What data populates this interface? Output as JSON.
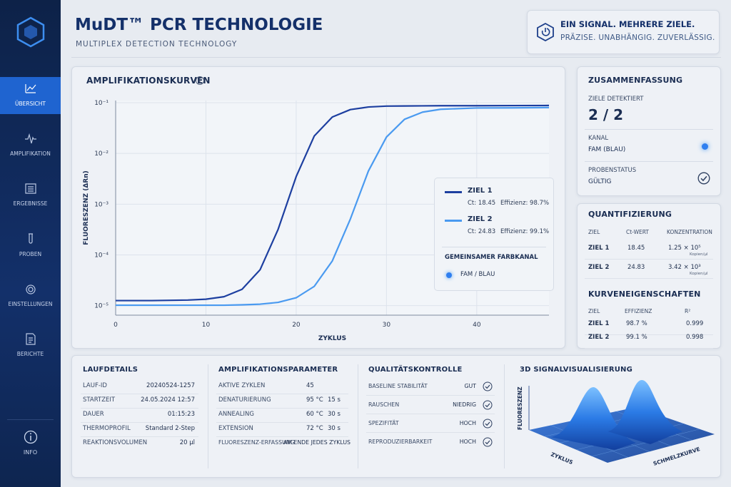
{
  "sidebar": {
    "items": [
      "ÜBERSICHT",
      "AMPLIFIKATION",
      "ERGEBNISSE",
      "PROBEN",
      "EINSTELLUNGEN",
      "BERICHTE"
    ],
    "info": "INFO"
  },
  "header": {
    "title": "MuDT™ PCR TECHNOLOGIE",
    "subtitle": "MULTIPLEX DETECTION TECHNOLOGY",
    "tagline_title": "EIN SIGNAL. MEHRERE ZIELE.",
    "tagline": "PRÄZISE. UNABHÄNGIG. ZUVERLÄSSIG."
  },
  "chart_data": {
    "type": "line",
    "title": "AMPLIFIKATIONSKURVEN",
    "xlabel": "ZYKLUS",
    "ylabel": "FLUORESZENZ (ΔRn)",
    "x": [
      0,
      4,
      8,
      10,
      12,
      14,
      16,
      18,
      20,
      22,
      24,
      26,
      28,
      30,
      32,
      34,
      36,
      40,
      44,
      48
    ],
    "series": [
      {
        "name": "ZIEL 1",
        "color": "#1d3fa0",
        "ct": "Ct: 18.45",
        "efficiency": "Effizienz: 98.7%",
        "values": [
          1.26e-05,
          1.26e-05,
          1.29e-05,
          1.34e-05,
          1.5e-05,
          2.1e-05,
          5.1e-05,
          0.00032,
          0.0035,
          0.022,
          0.052,
          0.073,
          0.082,
          0.0855,
          0.086,
          0.0865,
          0.087,
          0.087,
          0.0875,
          0.088
        ]
      },
      {
        "name": "ZIEL 2",
        "color": "#4a9af0",
        "ct": "Ct: 24.83",
        "efficiency": "Effizienz: 99.1%",
        "values": [
          1.02e-05,
          1.02e-05,
          1.02e-05,
          1.02e-05,
          1.02e-05,
          1.04e-05,
          1.07e-05,
          1.16e-05,
          1.43e-05,
          2.4e-05,
          7.6e-05,
          0.00051,
          0.0045,
          0.021,
          0.047,
          0.065,
          0.074,
          0.0785,
          0.079,
          0.08
        ]
      }
    ],
    "shared_channel_title": "GEMEINSAMER FARBKANAL",
    "shared_channel": "FAM / BLAU",
    "xlim": [
      0,
      48
    ],
    "xticks": [
      0,
      10,
      20,
      30,
      40
    ],
    "ylim": [
      6.5e-06,
      0.11
    ],
    "yscale": "log",
    "yticks": [
      {
        "value": 1e-05,
        "label": "10⁻⁵"
      },
      {
        "value": 0.0001,
        "label": "10⁻⁴"
      },
      {
        "value": 0.001,
        "label": "10⁻³"
      },
      {
        "value": 0.01,
        "label": "10⁻²"
      },
      {
        "value": 0.1,
        "label": "10⁻¹"
      }
    ],
    "grid": true,
    "legend": "right"
  },
  "summary": {
    "title": "ZUSAMMENFASSUNG",
    "rows": [
      {
        "label": "ZIELE DETEKTIERT",
        "value": "2 / 2"
      },
      {
        "label": "KANAL",
        "value": "FAM (BLAU)"
      },
      {
        "label": "PROBENSTATUS",
        "value": "GÜLTIG"
      }
    ]
  },
  "quantification": {
    "title": "QUANTIFIZIERUNG",
    "columns": [
      "ZIEL",
      "Ct-WERT",
      "KONZENTRATION"
    ],
    "rows": [
      [
        "ZIEL 1",
        "18.45",
        "1.25 × 10⁵",
        "Kopien/µl"
      ],
      [
        "ZIEL 2",
        "24.83",
        "3.42 × 10³",
        "Kopien/µl"
      ]
    ]
  },
  "curve_properties": {
    "title": "KURVENEIGENSCHAFTEN",
    "columns": [
      "ZIEL",
      "EFFIZIENZ",
      "R²"
    ],
    "rows": [
      [
        "ZIEL 1",
        "98.7 %",
        "0.999"
      ],
      [
        "ZIEL 2",
        "99.1 %",
        "0.998"
      ]
    ]
  },
  "run_details": {
    "title": "LAUFDETAILS",
    "rows": [
      [
        "LAUF-ID",
        "20240524-1257"
      ],
      [
        "STARTZEIT",
        "24.05.2024 12:57"
      ],
      [
        "DAUER",
        "01:15:23"
      ],
      [
        "THERMOPROFIL",
        "Standard 2-Step"
      ],
      [
        "REAKTIONSVOLUMEN",
        "20 µl"
      ]
    ]
  },
  "amplification_parameters": {
    "title": "AMPLIFIKATIONSPARAMETER",
    "rows": [
      [
        "AKTIVE ZYKLEN",
        "45"
      ],
      [
        "DENATURIERUNG",
        "95 °C",
        "15 s"
      ],
      [
        "ANNEALING",
        "60 °C",
        "30 s"
      ],
      [
        "EXTENSION",
        "72 °C",
        "30 s"
      ],
      [
        "FLUORESZENZ-ERFASSUNG",
        "AM ENDE JEDES ZYKLUS"
      ]
    ]
  },
  "quality_control": {
    "title": "QUALITÄTSKONTROLLE",
    "rows": [
      [
        "BASELINE STABILITÄT",
        "GUT"
      ],
      [
        "RAUSCHEN",
        "NIEDRIG"
      ],
      [
        "SPEZIFITÄT",
        "HOCH"
      ],
      [
        "REPRODUZIERBARKEIT",
        "HOCH"
      ]
    ]
  },
  "signal_3d": {
    "title": "3D SIGNALVISUALISIERUNG",
    "z_label": "FLUORESZENZ",
    "x_label": "ZYKLUS",
    "y_label": "SCHMELZKURVE"
  }
}
